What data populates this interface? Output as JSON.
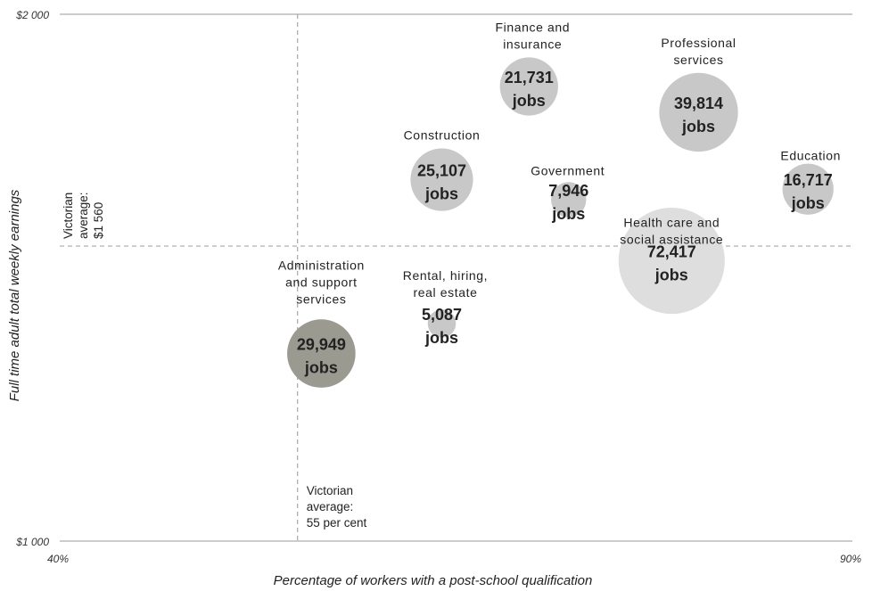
{
  "chart_data": {
    "type": "bubble",
    "xlabel": "Percentage of workers with a post-school qualification",
    "ylabel": "Full time adult total weekly earnings",
    "xlim": [
      40,
      90
    ],
    "ylim": [
      1000,
      2000
    ],
    "x_tick_labels": [
      "40%",
      "90%"
    ],
    "y_tick_labels": [
      "$1 000",
      "$2 000"
    ],
    "grid": false,
    "reference_lines": {
      "x": {
        "value": 55,
        "label": [
          "Victorian",
          "average:",
          "55 per cent"
        ]
      },
      "y": {
        "value": 1560,
        "label": [
          "Victorian",
          "average:",
          "$1 560"
        ]
      }
    },
    "series": [
      {
        "name": "Administration and support services",
        "label": [
          "Administration",
          "and support",
          "services"
        ],
        "x": 56.5,
        "y": 1356,
        "jobs": 29949,
        "value_label": "29,949",
        "unit_label": "jobs",
        "color": "#9b9a90",
        "text_color": "#222222"
      },
      {
        "name": "Construction",
        "label": [
          "Construction"
        ],
        "x": 64.1,
        "y": 1686,
        "jobs": 25107,
        "value_label": "25,107",
        "unit_label": "jobs",
        "color": "#c8c8c8",
        "text_color": "#222222"
      },
      {
        "name": "Finance and insurance",
        "label": [
          "Finance and",
          "insurance"
        ],
        "x": 69.6,
        "y": 1863,
        "jobs": 21731,
        "value_label": "21,731",
        "unit_label": "jobs",
        "color": "#c8c8c8",
        "text_color": "#222222"
      },
      {
        "name": "Government",
        "label": [
          "Government"
        ],
        "x": 72.1,
        "y": 1648,
        "jobs": 7946,
        "value_label": "7,946",
        "unit_label": "jobs",
        "color": "#c8c8c8",
        "text_color": "#222222"
      },
      {
        "name": "Rental, hiring, real estate",
        "label": [
          "Rental, hiring,",
          "real estate"
        ],
        "x": 64.1,
        "y": 1413,
        "jobs": 5087,
        "value_label": "5,087",
        "unit_label": "jobs",
        "color": "#c8c8c8",
        "text_color": "#222222"
      },
      {
        "name": "Professional services",
        "label": [
          "Professional",
          "services"
        ],
        "x": 80.3,
        "y": 1814,
        "jobs": 39814,
        "value_label": "39,814",
        "unit_label": "jobs",
        "color": "#c8c8c8",
        "text_color": "#222222"
      },
      {
        "name": "Education",
        "label": [
          "Education"
        ],
        "x": 87.2,
        "y": 1668,
        "jobs": 16717,
        "value_label": "16,717",
        "unit_label": "jobs",
        "color": "#c8c8c8",
        "text_color": "#222222"
      },
      {
        "name": "Health care and social assistance",
        "label": [
          "Health care and",
          "social assistance"
        ],
        "x": 78.6,
        "y": 1532,
        "jobs": 72417,
        "value_label": "72,417",
        "unit_label": "jobs",
        "color": "#dedede",
        "text_color": "#222222"
      }
    ]
  }
}
